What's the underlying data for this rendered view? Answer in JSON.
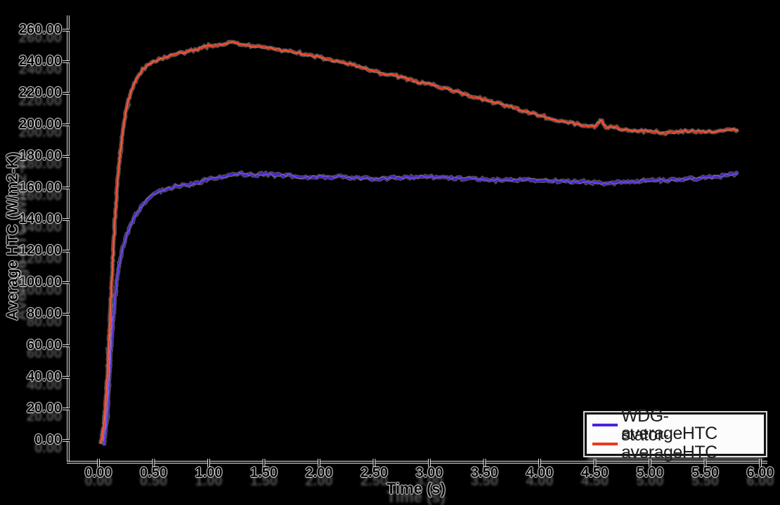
{
  "chart_data": {
    "type": "line",
    "title": "",
    "xlabel": "Time (s)",
    "ylabel": "Average HTC (W/m2-K)",
    "xlim": [
      -0.27,
      6.05
    ],
    "ylim": [
      -14,
      275
    ],
    "grid": false,
    "background": "#000000",
    "legend_position": "bottom-right",
    "x_ticks": [
      0,
      0.5,
      1,
      1.5,
      2,
      2.5,
      3,
      3.5,
      4,
      4.5,
      5,
      5.5,
      6
    ],
    "x_tick_labels": [
      "0.00",
      "0.50",
      "1.00",
      "1.50",
      "2.00",
      "2.50",
      "3.00",
      "3.50",
      "4.00",
      "4.50",
      "5.00",
      "5.50",
      "6.00"
    ],
    "y_ticks": [
      0,
      20,
      40,
      60,
      80,
      100,
      120,
      140,
      160,
      180,
      200,
      220,
      240,
      260
    ],
    "y_tick_labels": [
      "0.00",
      "20.00",
      "40.00",
      "60.00",
      "80.00",
      "100.00",
      "120.00",
      "140.00",
      "160.00",
      "180.00",
      "200.00",
      "220.00",
      "240.00",
      "260.00"
    ],
    "series": [
      {
        "name": "WDG-averageHTC",
        "color": "#4c22dd",
        "t": [
          0.05,
          0.08,
          0.1,
          0.12,
          0.15,
          0.18,
          0.22,
          0.26,
          0.3,
          0.35,
          0.4,
          0.45,
          0.5,
          0.6,
          0.7,
          0.8,
          0.9,
          1.0,
          1.1,
          1.2,
          1.3,
          1.4,
          1.5,
          1.6,
          1.7,
          1.8,
          1.9,
          2.0,
          2.2,
          2.4,
          2.6,
          2.8,
          3.0,
          3.2,
          3.4,
          3.6,
          3.8,
          4.0,
          4.2,
          4.4,
          4.6,
          4.8,
          5.0,
          5.2,
          5.4,
          5.6,
          5.8
        ],
        "v": [
          -3,
          15,
          40,
          65,
          90,
          108,
          122,
          131,
          138,
          144,
          149,
          153,
          156,
          159,
          161,
          162,
          163,
          166,
          167,
          168,
          169,
          168,
          169,
          168,
          168,
          167,
          167,
          167,
          167,
          166,
          166,
          167,
          167,
          166,
          166,
          165,
          165,
          165,
          164,
          164,
          163,
          164,
          165,
          165,
          166,
          167,
          169
        ]
      },
      {
        "name": "stator-averageHTC",
        "color": "#e63a1d",
        "t": [
          0.02,
          0.05,
          0.08,
          0.1,
          0.12,
          0.15,
          0.18,
          0.22,
          0.26,
          0.3,
          0.35,
          0.4,
          0.45,
          0.5,
          0.6,
          0.7,
          0.8,
          0.9,
          1.0,
          1.1,
          1.2,
          1.3,
          1.4,
          1.5,
          1.6,
          1.7,
          1.8,
          1.9,
          2.0,
          2.1,
          2.2,
          2.3,
          2.4,
          2.5,
          2.6,
          2.7,
          2.8,
          2.9,
          3.0,
          3.1,
          3.2,
          3.3,
          3.4,
          3.5,
          3.6,
          3.7,
          3.8,
          3.9,
          4.0,
          4.1,
          4.2,
          4.3,
          4.4,
          4.5,
          4.55,
          4.6,
          4.7,
          4.8,
          4.9,
          5.0,
          5.1,
          5.2,
          5.3,
          5.4,
          5.5,
          5.6,
          5.7,
          5.8
        ],
        "v": [
          -2,
          10,
          40,
          70,
          100,
          140,
          170,
          196,
          212,
          222,
          230,
          235,
          238,
          240,
          243,
          245,
          246,
          248,
          250,
          251,
          252,
          251,
          250,
          249,
          248,
          247,
          246,
          244,
          243,
          241,
          240,
          238,
          236,
          234,
          232,
          231,
          229,
          227,
          226,
          224,
          222,
          220,
          218,
          216,
          214,
          212,
          210,
          208,
          206,
          204,
          202,
          201,
          200,
          199,
          203,
          199,
          198,
          197,
          196,
          196,
          195,
          195,
          196,
          196,
          196,
          196,
          197,
          197
        ]
      }
    ],
    "axis_color": "#ffffff",
    "noise_amplitude": 4
  }
}
